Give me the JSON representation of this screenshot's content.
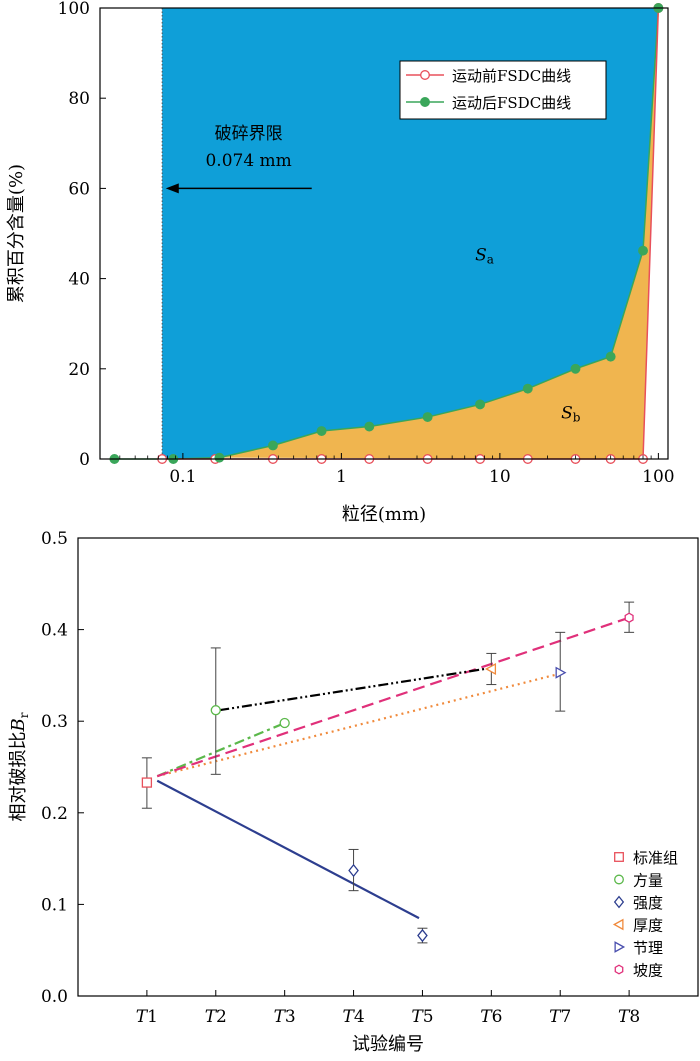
{
  "chart_data": [
    {
      "type": "line",
      "xscale": "log",
      "xlabel": "粒径(mm)",
      "ylabel": "累积百分含量(%)",
      "xlim": [
        0.03,
        115
      ],
      "ylim": [
        0,
        100
      ],
      "xticks": [
        0.1,
        1,
        10,
        100
      ],
      "xtick_labels": [
        "0.1",
        "1",
        "10",
        "100"
      ],
      "yticks": [
        0,
        20,
        40,
        60,
        80,
        100
      ],
      "ytick_labels": [
        "0",
        "20",
        "40",
        "60",
        "80",
        "100"
      ],
      "grid": false,
      "legend_position": "top-right",
      "series": [
        {
          "name": "运动前FSDC曲线",
          "color": "#e8505b",
          "marker": "open-circle",
          "x": [
            0.074,
            0.16,
            0.37,
            0.75,
            1.5,
            3.5,
            7.5,
            15,
            30,
            50,
            80,
            100
          ],
          "y": [
            0,
            0,
            0,
            0,
            0,
            0,
            0,
            0,
            0,
            0,
            0,
            100
          ]
        },
        {
          "name": "运动后FSDC曲线",
          "color": "#3aa65a",
          "marker": "filled-circle",
          "x": [
            0.037,
            0.087,
            0.17,
            0.37,
            0.75,
            1.5,
            3.5,
            7.5,
            15,
            30,
            50,
            80,
            100
          ],
          "y": [
            0,
            0,
            0.3,
            3,
            6.2,
            7.2,
            9.3,
            12.1,
            15.6,
            20,
            22.7,
            46.2,
            100
          ]
        }
      ],
      "regions": [
        {
          "name": "Sa",
          "label": "S",
          "sub": "a",
          "color": "#0f9fd8",
          "label_at": [
            8,
            44
          ]
        },
        {
          "name": "Sb",
          "label": "S",
          "sub": "b",
          "color": "#f0b54f",
          "label_at": [
            28,
            9
          ]
        }
      ],
      "annotations": [
        {
          "text": "破碎界限",
          "at": [
            0.26,
            71
          ]
        },
        {
          "text": "0.074 mm",
          "at": [
            0.26,
            65
          ]
        }
      ],
      "arrow": {
        "from": [
          0.65,
          60
        ],
        "to": [
          0.078,
          60
        ]
      },
      "boundary_x": 0.074
    },
    {
      "type": "scatter",
      "xlabel": "试验编号",
      "ylabel": "相对破损比B",
      "ylabel_sub": "r",
      "ylim": [
        0,
        0.5
      ],
      "yticks": [
        0.0,
        0.1,
        0.2,
        0.3,
        0.4,
        0.5
      ],
      "ytick_labels": [
        "0.0",
        "0.1",
        "0.2",
        "0.3",
        "0.4",
        "0.5"
      ],
      "categories": [
        {
          "letter": "T",
          "num": "1"
        },
        {
          "letter": "T",
          "num": "2"
        },
        {
          "letter": "T",
          "num": "3"
        },
        {
          "letter": "T",
          "num": "4"
        },
        {
          "letter": "T",
          "num": "5"
        },
        {
          "letter": "T",
          "num": "6"
        },
        {
          "letter": "T",
          "num": "7"
        },
        {
          "letter": "T",
          "num": "8"
        }
      ],
      "grid": false,
      "legend_position": "bottom-right",
      "points": [
        {
          "series": "标准组",
          "x": 1,
          "y": 0.233,
          "err": [
            0.205,
            0.26
          ],
          "marker": "square",
          "color": "#e8505b"
        },
        {
          "series": "方量",
          "x": 2,
          "y": 0.312,
          "err": [
            0.242,
            0.38
          ],
          "marker": "circle",
          "color": "#5bb84a"
        },
        {
          "series": "方量",
          "x": 3,
          "y": 0.298,
          "marker": "circle",
          "color": "#5bb84a"
        },
        {
          "series": "强度",
          "x": 4,
          "y": 0.137,
          "err": [
            0.115,
            0.16
          ],
          "marker": "diamond",
          "color": "#2d3e8f"
        },
        {
          "series": "强度",
          "x": 5,
          "y": 0.066,
          "err": [
            0.058,
            0.074
          ],
          "marker": "diamond",
          "color": "#2d3e8f"
        },
        {
          "series": "厚度",
          "x": 6,
          "y": 0.357,
          "err": [
            0.34,
            0.374
          ],
          "marker": "triangle-left",
          "color": "#f08a3c"
        },
        {
          "series": "节理",
          "x": 7,
          "y": 0.353,
          "err": [
            0.311,
            0.397
          ],
          "marker": "triangle-right",
          "color": "#4a4fae"
        },
        {
          "series": "坡度",
          "x": 8,
          "y": 0.413,
          "err": [
            0.397,
            0.43
          ],
          "marker": "hexagon",
          "color": "#e0307a"
        }
      ],
      "fit_lines": [
        {
          "series": "方量",
          "color": "#5bb84a",
          "style": "dashdot",
          "from": [
            1.15,
            0.24
          ],
          "to": [
            3,
            0.298
          ]
        },
        {
          "series": "强度",
          "color": "#2d3e8f",
          "style": "solid",
          "from": [
            1.15,
            0.235
          ],
          "to": [
            4.95,
            0.085
          ]
        },
        {
          "series": "厚度",
          "color": "#f08a3c",
          "style": "dotted",
          "from": [
            1.15,
            0.24
          ],
          "to": [
            7,
            0.352
          ]
        },
        {
          "series": "坡度",
          "color": "#e0307a",
          "style": "dashed",
          "from": [
            1.15,
            0.24
          ],
          "to": [
            8,
            0.413
          ]
        },
        {
          "series": "节理",
          "color": "#000000",
          "style": "dashdotdot",
          "from": [
            2.05,
            0.312
          ],
          "to": [
            5.9,
            0.357
          ]
        }
      ],
      "legend": [
        {
          "name": "标准组",
          "marker": "square",
          "color": "#e8505b"
        },
        {
          "name": "方量",
          "marker": "circle",
          "color": "#5bb84a"
        },
        {
          "name": "强度",
          "marker": "diamond",
          "color": "#2d3e8f"
        },
        {
          "name": "厚度",
          "marker": "triangle-left",
          "color": "#f08a3c"
        },
        {
          "name": "节理",
          "marker": "triangle-right",
          "color": "#4a4fae"
        },
        {
          "name": "坡度",
          "marker": "hexagon",
          "color": "#e0307a"
        }
      ]
    }
  ]
}
